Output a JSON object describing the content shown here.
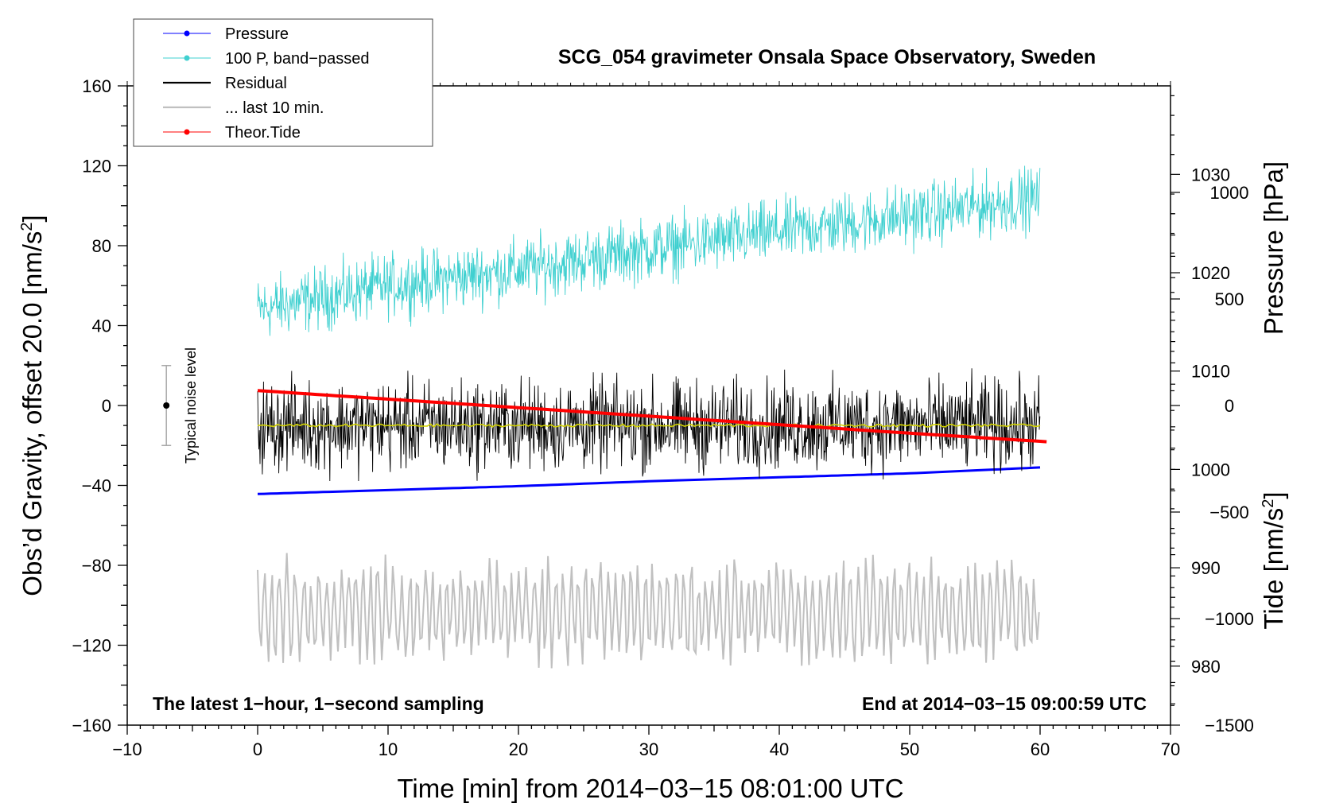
{
  "chart_data": {
    "type": "line",
    "title": "SCG_054 gravimeter Onsala Space Observatory, Sweden",
    "xlabel": "Time [min] from 2014−03−15 08:01:00 UTC",
    "ylabel_left_main": "Obs’d Gravity, offset 20.0 [nm/s",
    "ylabel_left_sup": "2",
    "ylabel_left_close": "]",
    "ylabel_right_pressure": "Pressure [hPa]",
    "ylabel_right_tide_main": "Tide [nm/s",
    "ylabel_right_tide_sup": "2",
    "ylabel_right_tide_close": "]",
    "xlim": [
      -10,
      70
    ],
    "ylim": [
      -160,
      160
    ],
    "pressure_lim": [
      974,
      1039
    ],
    "tide_lim": [
      -1500,
      1500
    ],
    "x_ticks": [
      -10,
      0,
      10,
      20,
      30,
      40,
      50,
      60,
      70
    ],
    "x_tick_labels": [
      "−10",
      "0",
      "10",
      "20",
      "30",
      "40",
      "50",
      "60",
      "70"
    ],
    "y_ticks": [
      -160,
      -120,
      -80,
      -40,
      0,
      40,
      80,
      120,
      160
    ],
    "y_tick_labels": [
      "−160",
      "−120",
      "−80",
      "−40",
      "0",
      "40",
      "80",
      "120",
      "160"
    ],
    "pressure_ticks": [
      980,
      990,
      1000,
      1010,
      1020,
      1030
    ],
    "pressure_tick_labels": [
      "980",
      "990",
      "1000",
      "1010",
      "1020",
      "1030"
    ],
    "tide_ticks": [
      -1500,
      -1000,
      -500,
      0,
      500,
      1000
    ],
    "tide_tick_labels": [
      "−1500",
      "−1000",
      "−500",
      "0",
      "500",
      "1000"
    ],
    "legend": [
      {
        "label": "Pressure",
        "color": "#0000ff",
        "marker": true
      },
      {
        "label": "100 P, band−passed",
        "color": "#40d0d0",
        "marker": true
      },
      {
        "label": "Residual",
        "color": "#000000",
        "marker": false
      },
      {
        "label": "... last 10 min.",
        "color": "#c0c0c0",
        "marker": false
      },
      {
        "label": "Theor.Tide",
        "color": "#ff0000",
        "marker": true
      }
    ],
    "annotations": {
      "bottom_left": "The latest 1−hour, 1−second sampling",
      "bottom_right": "End at 2014−03−15 09:00:59 UTC",
      "noise_label": "Typical noise level"
    },
    "noise_bar": {
      "x": -7,
      "center": 0,
      "half_range": 20
    },
    "series": [
      {
        "name": "Pressure",
        "axis": "pressure",
        "color": "#0000ff",
        "x": [
          0,
          10,
          20,
          30,
          40,
          50,
          60
        ],
        "values": [
          997.5,
          997.9,
          998.3,
          998.8,
          999.2,
          999.6,
          1000.2
        ]
      },
      {
        "name": "100 P, band−passed",
        "axis": "gravity",
        "color": "#40d0d0",
        "x": [
          0,
          10,
          20,
          30,
          40,
          50,
          60
        ],
        "values": [
          48,
          60,
          68,
          78,
          87,
          95,
          104
        ],
        "spread": 14
      },
      {
        "name": "Residual",
        "axis": "gravity",
        "color": "#000000",
        "x": [
          0,
          60
        ],
        "values": [
          -10,
          -10
        ],
        "spread": 20
      },
      {
        "name": "Residual smoothed",
        "axis": "gravity",
        "color": "#d4d400",
        "x": [
          0,
          60
        ],
        "values": [
          -10,
          -10
        ]
      },
      {
        "name": "... last 10 min.",
        "axis": "gravity",
        "color": "#c0c0c0",
        "x": [
          0,
          60
        ],
        "values": [
          -103,
          -103
        ],
        "spread": 27
      },
      {
        "name": "Theor.Tide",
        "axis": "tide",
        "color": "#ff0000",
        "x": [
          0,
          10,
          20,
          30,
          40,
          50,
          60.5
        ],
        "values": [
          70,
          30,
          -10,
          -50,
          -90,
          -130,
          -170
        ]
      }
    ]
  }
}
